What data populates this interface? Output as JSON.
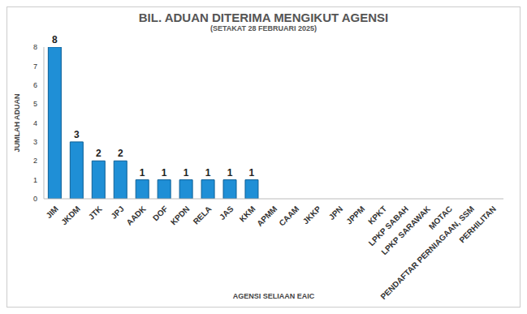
{
  "chart_data": {
    "type": "bar",
    "title": "BIL. ADUAN DITERIMA MENGIKUT AGENSI",
    "subtitle": "(SETAKAT 28 FEBRUARI 2025)",
    "x_label": "AGENSI SELIAAN EAIC",
    "y_label": "JUMLAH ADUAN",
    "categories": [
      "JIM",
      "JKDM",
      "JTK",
      "JPJ",
      "AADK",
      "DOF",
      "KPDN",
      "RELA",
      "JAS",
      "KKM",
      "APMM",
      "CAAM",
      "JKKP",
      "JPN",
      "JPPM",
      "KPKT",
      "LPKP SABAH",
      "LPKP SARAWAK",
      "MOTAC",
      "PENDAFTAR PERNIAGAAN, SSM",
      "PERHILITAN"
    ],
    "values": [
      8,
      3,
      2,
      2,
      1,
      1,
      1,
      1,
      1,
      1,
      0,
      0,
      0,
      0,
      0,
      0,
      0,
      0,
      0,
      0,
      0
    ],
    "color": "#1f8fd6",
    "ylim": [
      0,
      8
    ],
    "yticks": [
      0,
      1,
      2,
      3,
      4,
      5,
      6,
      7,
      8
    ],
    "grid": false,
    "data_labels": true
  }
}
